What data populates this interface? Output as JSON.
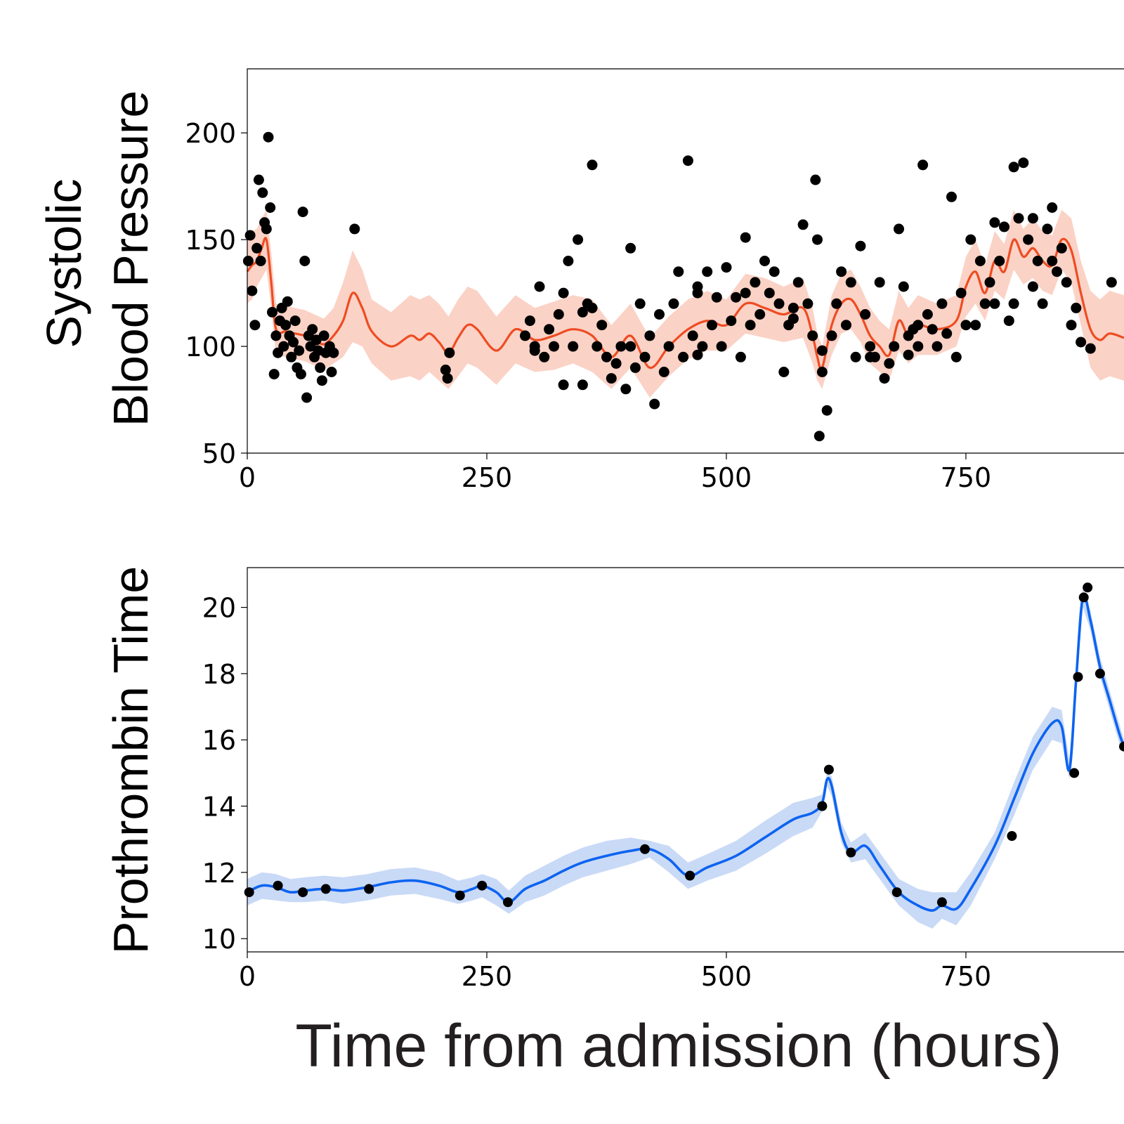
{
  "chart_data": [
    {
      "type": "scatter",
      "ylabel_line1": "Systolic",
      "ylabel_line2": "Blood Pressure",
      "xlim": [
        0,
        915
      ],
      "ylim": [
        50,
        230
      ],
      "xticks": [
        "0",
        "250",
        "500",
        "750"
      ],
      "yticks": [
        "50",
        "100",
        "150",
        "200"
      ],
      "xtick_values": [
        0,
        250,
        500,
        750
      ],
      "ytick_values": [
        50,
        100,
        150,
        200
      ],
      "colors": {
        "line": "#ee4c22",
        "band": "#fbd2c6",
        "points": "#000000"
      },
      "fit": {
        "x": [
          0,
          5,
          10,
          15,
          20,
          25,
          30,
          40,
          50,
          60,
          70,
          80,
          90,
          100,
          110,
          120,
          130,
          150,
          170,
          180,
          190,
          200,
          210,
          220,
          230,
          240,
          260,
          280,
          300,
          320,
          340,
          360,
          380,
          400,
          420,
          440,
          460,
          480,
          500,
          520,
          540,
          560,
          580,
          590,
          595,
          600,
          610,
          620,
          630,
          640,
          650,
          660,
          670,
          680,
          690,
          700,
          720,
          740,
          750,
          760,
          770,
          780,
          790,
          800,
          810,
          820,
          830,
          840,
          850,
          860,
          870,
          880,
          890,
          900,
          915
        ],
        "y": [
          135,
          138,
          140,
          146,
          150,
          130,
          108,
          107,
          106,
          105,
          103,
          101,
          105,
          112,
          125,
          118,
          107,
          100,
          105,
          103,
          106,
          102,
          97,
          104,
          110,
          108,
          98,
          108,
          103,
          105,
          108,
          105,
          95,
          105,
          90,
          100,
          108,
          112,
          110,
          120,
          118,
          115,
          118,
          105,
          95,
          90,
          110,
          120,
          122,
          115,
          105,
          100,
          96,
          112,
          105,
          110,
          108,
          112,
          128,
          135,
          125,
          140,
          135,
          150,
          142,
          146,
          140,
          138,
          150,
          145,
          125,
          108,
          103,
          106,
          104
        ],
        "lo": [
          120,
          122,
          128,
          132,
          136,
          118,
          96,
          95,
          94,
          93,
          91,
          89,
          92,
          95,
          102,
          100,
          92,
          84,
          86,
          84,
          88,
          84,
          80,
          86,
          92,
          90,
          82,
          92,
          88,
          89,
          92,
          88,
          80,
          90,
          76,
          86,
          94,
          98,
          98,
          106,
          104,
          102,
          104,
          92,
          84,
          80,
          96,
          106,
          108,
          102,
          92,
          88,
          84,
          98,
          92,
          96,
          96,
          100,
          114,
          120,
          112,
          126,
          122,
          136,
          129,
          132,
          126,
          124,
          136,
          130,
          110,
          90,
          84,
          86,
          84
        ],
        "hi": [
          150,
          154,
          155,
          160,
          164,
          144,
          120,
          119,
          118,
          117,
          115,
          113,
          118,
          130,
          145,
          136,
          122,
          116,
          124,
          122,
          124,
          120,
          114,
          122,
          128,
          126,
          114,
          124,
          118,
          121,
          124,
          122,
          110,
          120,
          104,
          114,
          122,
          126,
          122,
          134,
          132,
          128,
          132,
          118,
          106,
          100,
          124,
          134,
          136,
          128,
          118,
          112,
          108,
          126,
          118,
          124,
          120,
          124,
          142,
          150,
          138,
          154,
          148,
          164,
          155,
          160,
          154,
          152,
          164,
          160,
          140,
          126,
          122,
          126,
          124
        ]
      },
      "points_x": [
        1,
        3,
        5,
        8,
        10,
        12,
        14,
        16,
        18,
        20,
        22,
        24,
        26,
        28,
        30,
        32,
        34,
        36,
        38,
        40,
        42,
        44,
        46,
        48,
        50,
        52,
        54,
        56,
        58,
        60,
        62,
        64,
        66,
        68,
        70,
        72,
        74,
        76,
        78,
        80,
        82,
        86,
        88,
        90,
        112,
        207,
        209,
        211,
        290,
        295,
        300,
        305,
        310,
        315,
        320,
        325,
        330,
        335,
        340,
        345,
        350,
        355,
        360,
        365,
        370,
        375,
        380,
        385,
        390,
        395,
        400,
        405,
        410,
        415,
        420,
        425,
        430,
        435,
        440,
        445,
        450,
        455,
        460,
        465,
        470,
        475,
        480,
        485,
        490,
        495,
        500,
        505,
        510,
        515,
        520,
        525,
        530,
        535,
        540,
        545,
        550,
        555,
        560,
        565,
        570,
        575,
        580,
        585,
        590,
        593,
        595,
        597,
        600,
        605,
        610,
        615,
        620,
        625,
        630,
        635,
        640,
        645,
        650,
        655,
        660,
        665,
        670,
        675,
        680,
        685,
        690,
        695,
        700,
        705,
        710,
        715,
        720,
        725,
        730,
        735,
        740,
        745,
        750,
        755,
        760,
        765,
        770,
        775,
        780,
        785,
        790,
        795,
        800,
        805,
        810,
        815,
        820,
        825,
        830,
        835,
        840,
        845,
        850,
        855,
        860,
        865,
        870,
        880,
        902,
        300,
        330,
        360,
        400,
        470,
        520,
        570,
        600,
        650,
        690,
        780,
        820,
        840,
        350,
        470,
        700,
        800
      ],
      "points_y": [
        140,
        152,
        126,
        110,
        146,
        178,
        140,
        172,
        158,
        155,
        198,
        165,
        116,
        87,
        105,
        97,
        112,
        118,
        100,
        110,
        121,
        105,
        95,
        102,
        112,
        90,
        98,
        87,
        163,
        140,
        76,
        105,
        100,
        108,
        95,
        103,
        98,
        90,
        84,
        105,
        97,
        100,
        88,
        97,
        155,
        89,
        85,
        97,
        105,
        112,
        100,
        128,
        95,
        108,
        100,
        115,
        125,
        140,
        100,
        150,
        116,
        120,
        185,
        100,
        110,
        95,
        85,
        92,
        100,
        80,
        146,
        90,
        120,
        95,
        105,
        73,
        115,
        88,
        100,
        120,
        135,
        95,
        187,
        105,
        125,
        100,
        135,
        110,
        123,
        100,
        137,
        112,
        123,
        95,
        151,
        110,
        130,
        115,
        140,
        125,
        135,
        120,
        88,
        110,
        113,
        130,
        157,
        120,
        105,
        178,
        150,
        58,
        88,
        70,
        105,
        120,
        135,
        110,
        130,
        95,
        147,
        115,
        100,
        95,
        130,
        85,
        92,
        100,
        155,
        128,
        96,
        108,
        100,
        185,
        115,
        108,
        100,
        120,
        106,
        170,
        95,
        125,
        110,
        150,
        110,
        140,
        120,
        130,
        158,
        140,
        156,
        112,
        120,
        160,
        186,
        150,
        160,
        140,
        120,
        155,
        165,
        135,
        146,
        130,
        110,
        118,
        102,
        99,
        130,
        98,
        82,
        118,
        100,
        128,
        125,
        118,
        98,
        95,
        105,
        120,
        128,
        140,
        82,
        96,
        110,
        184
      ]
    },
    {
      "type": "line",
      "ylabel": "Prothrombin Time",
      "xlabel": "Time from admission (hours)",
      "xlim": [
        0,
        915
      ],
      "ylim": [
        9.6,
        21.2
      ],
      "xticks": [
        "0",
        "250",
        "500",
        "750"
      ],
      "yticks": [
        "10",
        "12",
        "14",
        "16",
        "18",
        "20"
      ],
      "xtick_values": [
        0,
        250,
        500,
        750
      ],
      "ytick_values": [
        10,
        12,
        14,
        16,
        18,
        20
      ],
      "colors": {
        "line": "#0d63f0",
        "band": "#c9daf7",
        "points": "#000000"
      },
      "fit": {
        "x": [
          0,
          15,
          30,
          45,
          60,
          80,
          100,
          125,
          150,
          175,
          200,
          220,
          235,
          245,
          260,
          273,
          290,
          310,
          330,
          350,
          375,
          400,
          420,
          440,
          460,
          480,
          510,
          540,
          570,
          590,
          600,
          605,
          610,
          620,
          630,
          645,
          660,
          680,
          700,
          715,
          725,
          740,
          755,
          780,
          800,
          820,
          840,
          850,
          858,
          865,
          872,
          880,
          890,
          900,
          910,
          915
        ],
        "y": [
          11.4,
          11.6,
          11.55,
          11.4,
          11.45,
          11.5,
          11.45,
          11.55,
          11.7,
          11.75,
          11.6,
          11.4,
          11.5,
          11.6,
          11.4,
          11.1,
          11.5,
          11.75,
          12.05,
          12.3,
          12.5,
          12.65,
          12.7,
          12.4,
          11.9,
          12.15,
          12.5,
          13.05,
          13.6,
          13.8,
          14.1,
          14.8,
          14.6,
          13.2,
          12.6,
          12.8,
          12.2,
          11.4,
          11.0,
          10.85,
          11.0,
          10.9,
          11.5,
          12.8,
          14.2,
          15.6,
          16.5,
          16.4,
          15.1,
          17.8,
          20.3,
          19.6,
          18.2,
          17.2,
          16.2,
          15.8
        ],
        "lo": [
          11.0,
          11.2,
          11.15,
          11.1,
          11.1,
          11.15,
          11.05,
          11.15,
          11.3,
          11.35,
          11.2,
          11.05,
          11.15,
          11.25,
          11.0,
          10.75,
          11.1,
          11.3,
          11.6,
          11.85,
          12.05,
          12.25,
          12.45,
          12.0,
          11.5,
          11.75,
          12.05,
          12.55,
          13.1,
          13.35,
          13.85,
          14.6,
          14.3,
          12.9,
          12.3,
          12.4,
          11.8,
          11.0,
          10.5,
          10.3,
          10.6,
          10.4,
          11.0,
          12.4,
          13.7,
          15.1,
          16.0,
          15.9,
          14.8,
          17.5,
          20.0,
          19.3,
          17.9,
          16.9,
          15.9,
          15.6
        ],
        "hi": [
          11.8,
          12.0,
          11.95,
          11.8,
          11.85,
          11.9,
          11.85,
          11.95,
          12.1,
          12.15,
          12.0,
          11.75,
          11.85,
          11.95,
          11.8,
          11.45,
          11.9,
          12.2,
          12.5,
          12.75,
          12.95,
          13.05,
          12.95,
          12.8,
          12.3,
          12.55,
          12.95,
          13.55,
          14.1,
          14.25,
          14.35,
          15.0,
          14.9,
          13.5,
          12.9,
          13.2,
          12.6,
          11.8,
          11.5,
          11.4,
          11.4,
          11.4,
          12.0,
          13.2,
          14.7,
          16.1,
          17.0,
          16.9,
          15.4,
          18.1,
          20.6,
          19.9,
          18.5,
          17.5,
          16.5,
          16.0
        ],
        "lo_note": ""
      },
      "points_x": [
        2,
        32,
        58,
        82,
        127,
        222,
        245,
        272,
        415,
        462,
        600,
        607,
        630,
        678,
        725,
        798,
        863,
        867,
        873,
        877,
        890,
        915
      ],
      "points_y": [
        11.4,
        11.6,
        11.4,
        11.5,
        11.5,
        11.3,
        11.6,
        11.1,
        12.7,
        11.9,
        14.0,
        15.1,
        12.6,
        11.4,
        11.1,
        13.1,
        15.0,
        17.9,
        20.3,
        20.6,
        18.0,
        15.8
      ]
    }
  ]
}
